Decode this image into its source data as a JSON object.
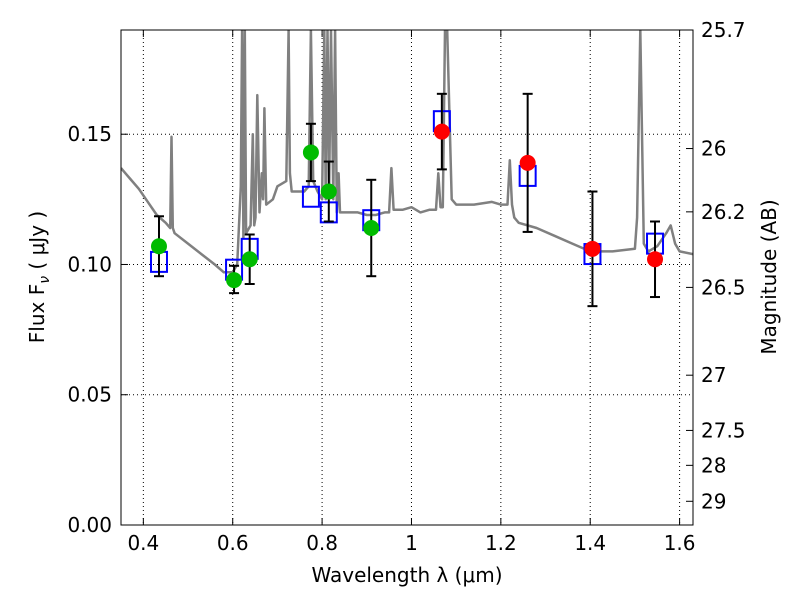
{
  "chart_data": {
    "type": "scatter",
    "xlabel": "Wavelength  λ (μm)",
    "ylabel": "Flux  F",
    "ylabel_subscript": "ν",
    "ylabel_units": " ( μJy )",
    "y2label": "Magnitude (AB)",
    "xlim": [
      0.35,
      1.63
    ],
    "ylim": [
      0.0,
      0.19
    ],
    "x_ticks": [
      0.4,
      0.6,
      0.8,
      1.0,
      1.2,
      1.4,
      1.6
    ],
    "x_tick_labels": [
      "0.4",
      "0.6",
      "0.8",
      "1",
      "1.2",
      "1.4",
      "1.6"
    ],
    "y_ticks": [
      0.0,
      0.05,
      0.1,
      0.15
    ],
    "y_tick_labels": [
      "0.00",
      "0.05",
      "0.10",
      "0.15"
    ],
    "y2_tick_labels": [
      "25.7",
      "26",
      "26.2",
      "26.5",
      "27",
      "27.5",
      "28",
      "29"
    ],
    "y2_tick_flux": [
      0.19,
      0.1445,
      0.1202,
      0.0912,
      0.0575,
      0.0363,
      0.0229,
      0.0091
    ],
    "grid": true,
    "colors": {
      "spectrum": "#808080",
      "model_box": "#0000ff",
      "observed_optical": "#00bb00",
      "observed_ir": "#ff0000",
      "errorbar": "#000000"
    },
    "spectrum": {
      "name": "",
      "x": [
        0.35,
        0.37,
        0.39,
        0.41,
        0.43,
        0.45,
        0.46,
        0.463,
        0.466,
        0.47,
        0.5,
        0.53,
        0.56,
        0.58,
        0.6,
        0.61,
        0.618,
        0.621,
        0.624,
        0.627,
        0.63,
        0.64,
        0.645,
        0.648,
        0.651,
        0.655,
        0.66,
        0.665,
        0.668,
        0.671,
        0.675,
        0.69,
        0.7,
        0.72,
        0.725,
        0.728,
        0.732,
        0.74,
        0.76,
        0.77,
        0.775,
        0.78,
        0.79,
        0.8,
        0.805,
        0.808,
        0.812,
        0.816,
        0.82,
        0.825,
        0.829,
        0.833,
        0.837,
        0.84,
        0.86,
        0.88,
        0.9,
        0.92,
        0.94,
        0.95,
        0.955,
        0.96,
        0.98,
        1.0,
        1.02,
        1.04,
        1.055,
        1.06,
        1.065,
        1.07,
        1.075,
        1.08,
        1.09,
        1.1,
        1.14,
        1.18,
        1.2,
        1.215,
        1.22,
        1.225,
        1.23,
        1.24,
        1.28,
        1.32,
        1.36,
        1.4,
        1.45,
        1.5,
        1.505,
        1.512,
        1.52,
        1.53,
        1.55,
        1.57,
        1.58,
        1.59,
        1.6,
        1.63
      ],
      "y": [
        0.137,
        0.133,
        0.129,
        0.124,
        0.119,
        0.116,
        0.114,
        0.149,
        0.114,
        0.112,
        0.108,
        0.104,
        0.1,
        0.097,
        0.097,
        0.1,
        0.13,
        0.19,
        0.11,
        0.19,
        0.112,
        0.115,
        0.15,
        0.115,
        0.118,
        0.165,
        0.12,
        0.135,
        0.125,
        0.16,
        0.123,
        0.125,
        0.13,
        0.132,
        0.19,
        0.135,
        0.128,
        0.128,
        0.128,
        0.13,
        0.19,
        0.132,
        0.128,
        0.125,
        0.19,
        0.125,
        0.19,
        0.13,
        0.19,
        0.125,
        0.19,
        0.12,
        0.135,
        0.12,
        0.12,
        0.12,
        0.119,
        0.119,
        0.12,
        0.12,
        0.137,
        0.121,
        0.121,
        0.122,
        0.12,
        0.121,
        0.121,
        0.135,
        0.122,
        0.122,
        0.19,
        0.19,
        0.125,
        0.123,
        0.123,
        0.124,
        0.123,
        0.123,
        0.14,
        0.123,
        0.118,
        0.116,
        0.114,
        0.111,
        0.108,
        0.105,
        0.105,
        0.106,
        0.118,
        0.19,
        0.108,
        0.105,
        0.107,
        0.112,
        0.115,
        0.108,
        0.105,
        0.104
      ]
    },
    "model_boxes": [
      {
        "x": 0.435,
        "y": 0.101
      },
      {
        "x": 0.603,
        "y": 0.098
      },
      {
        "x": 0.638,
        "y": 0.106
      },
      {
        "x": 0.775,
        "y": 0.126
      },
      {
        "x": 0.815,
        "y": 0.12
      },
      {
        "x": 0.91,
        "y": 0.117
      },
      {
        "x": 1.068,
        "y": 0.155
      },
      {
        "x": 1.26,
        "y": 0.134
      },
      {
        "x": 1.405,
        "y": 0.104
      },
      {
        "x": 1.545,
        "y": 0.108
      }
    ],
    "points": [
      {
        "x": 0.435,
        "y": 0.107,
        "err_low": 0.0115,
        "err_high": 0.0115,
        "band": "optical"
      },
      {
        "x": 0.603,
        "y": 0.094,
        "err_low": 0.005,
        "err_high": 0.0055,
        "band": "optical"
      },
      {
        "x": 0.638,
        "y": 0.102,
        "err_low": 0.0095,
        "err_high": 0.0095,
        "band": "optical"
      },
      {
        "x": 0.775,
        "y": 0.143,
        "err_low": 0.011,
        "err_high": 0.011,
        "band": "optical"
      },
      {
        "x": 0.815,
        "y": 0.128,
        "err_low": 0.0115,
        "err_high": 0.0115,
        "band": "optical"
      },
      {
        "x": 0.91,
        "y": 0.114,
        "err_low": 0.0185,
        "err_high": 0.0185,
        "band": "optical"
      },
      {
        "x": 1.068,
        "y": 0.151,
        "err_low": 0.0145,
        "err_high": 0.0145,
        "band": "ir"
      },
      {
        "x": 1.26,
        "y": 0.139,
        "err_low": 0.0265,
        "err_high": 0.0265,
        "band": "ir"
      },
      {
        "x": 1.405,
        "y": 0.106,
        "err_low": 0.022,
        "err_high": 0.022,
        "band": "ir"
      },
      {
        "x": 1.545,
        "y": 0.102,
        "err_low": 0.0145,
        "err_high": 0.0145,
        "band": "ir"
      }
    ]
  }
}
